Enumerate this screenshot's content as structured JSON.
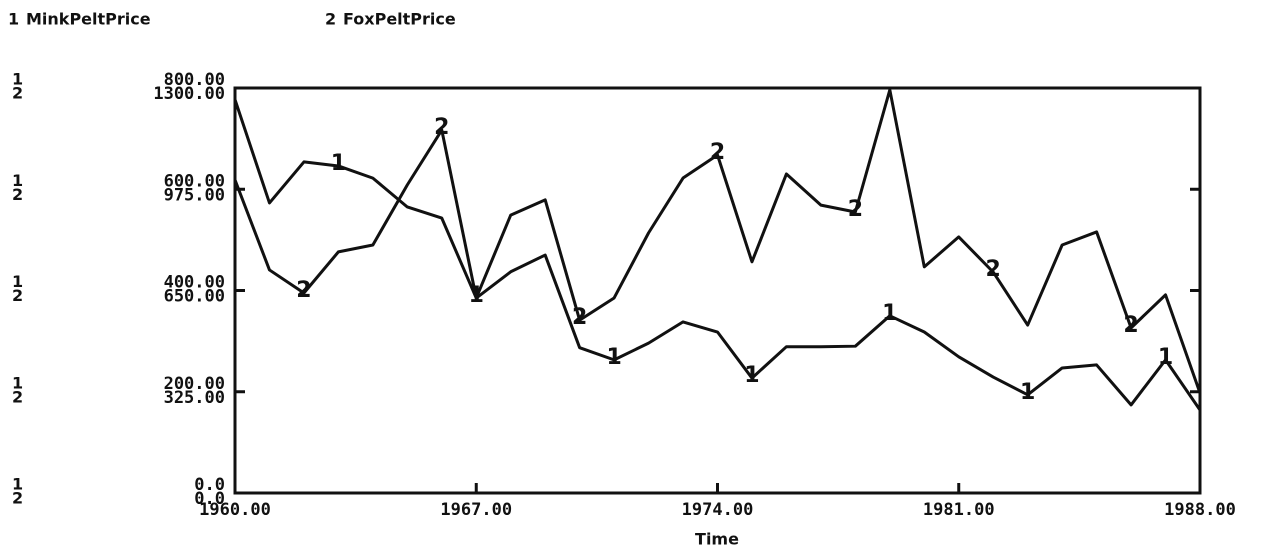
{
  "chart_data": {
    "type": "line",
    "x_label": "Time",
    "x": [
      1960,
      1961,
      1962,
      1963,
      1964,
      1965,
      1966,
      1967,
      1968,
      1969,
      1970,
      1971,
      1972,
      1973,
      1974,
      1975,
      1976,
      1977,
      1978,
      1979,
      1980,
      1981,
      1982,
      1983,
      1984,
      1985,
      1986,
      1987,
      1988
    ],
    "series": [
      {
        "name": "MinkPeltPrice",
        "marker": "1",
        "color": "#111111",
        "values": [
          777,
          573,
          654,
          646,
          622,
          565,
          543,
          385,
          437,
          470,
          287,
          263,
          296,
          338,
          318,
          227,
          289,
          289,
          290,
          350,
          318,
          269,
          229,
          194,
          247,
          253,
          174,
          263,
          164
        ]
      },
      {
        "name": "FoxPeltPrice",
        "marker": "2",
        "color": "#111111",
        "axis": "y2",
        "values": [
          1005,
          716,
          642,
          774,
          796,
          989,
          1165,
          626,
          892,
          941,
          555,
          626,
          835,
          1011,
          1085,
          742,
          1024,
          924,
          902,
          1294,
          726,
          822,
          709,
          539,
          796,
          838,
          530,
          636,
          321
        ]
      }
    ],
    "xlim": [
      1960,
      1988
    ],
    "xticks": [
      {
        "value": 1960,
        "label": "1960.00"
      },
      {
        "value": 1967,
        "label": "1967.00"
      },
      {
        "value": 1974,
        "label": "1974.00"
      },
      {
        "value": 1981,
        "label": "1981.00"
      },
      {
        "value": 1988,
        "label": "1988.00"
      }
    ],
    "ylim": [
      0,
      800
    ],
    "yticks": [
      {
        "value": 0,
        "label": "0.0"
      },
      {
        "value": 200,
        "label": "200.00"
      },
      {
        "value": 400,
        "label": "400.00"
      },
      {
        "value": 600,
        "label": "600.00"
      },
      {
        "value": 800,
        "label": "800.00"
      }
    ],
    "y2lim": [
      0,
      1300
    ],
    "y2ticks": [
      {
        "value": 0,
        "label": "0.0"
      },
      {
        "value": 325,
        "label": "325.00"
      },
      {
        "value": 650,
        "label": "650.00"
      },
      {
        "value": 975,
        "label": "975.00"
      },
      {
        "value": 1300,
        "label": "1300.00"
      }
    ]
  }
}
